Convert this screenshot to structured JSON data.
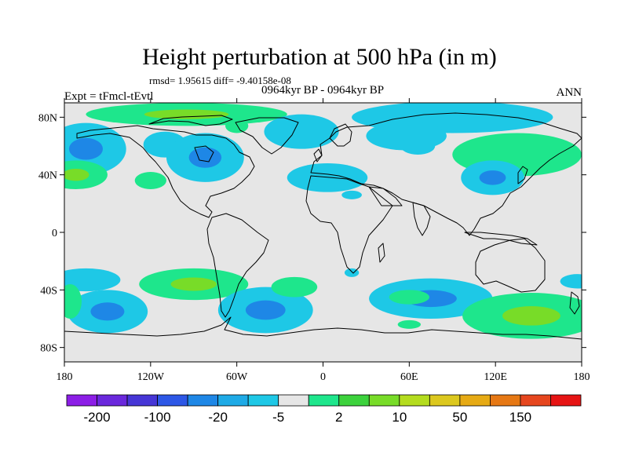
{
  "chart_data": {
    "type": "heatmap",
    "title": "Height perturbation at 500 hPa (in m)",
    "stats": "rmsd= 1.95615 diff= -9.40158e-08",
    "period": "0964kyr BP - 0964kyr BP",
    "experiment": "Expt = tFmcl-tEvtl",
    "season": "ANN",
    "x_ticks": [
      "180",
      "120W",
      "60W",
      "0",
      "60E",
      "120E",
      "180"
    ],
    "x_tick_values": [
      -180,
      -120,
      -60,
      0,
      60,
      120,
      180
    ],
    "y_ticks": [
      "80N",
      "40N",
      "0",
      "40S",
      "80S"
    ],
    "y_tick_values": [
      80,
      40,
      0,
      -40,
      -80
    ],
    "xlim": [
      -180,
      180
    ],
    "ylim": [
      -90,
      90
    ],
    "colorbar": {
      "labels": [
        "-200",
        "-100",
        "-20",
        "-5",
        "2",
        "10",
        "50",
        "150"
      ],
      "colors": [
        "#8c1ee6",
        "#6a28dc",
        "#4636d6",
        "#2d57e6",
        "#1e87e6",
        "#1eaae6",
        "#1ec8e6",
        "#e6e6e6",
        "#1ee68c",
        "#3cd23c",
        "#78dc28",
        "#b4dc1e",
        "#dcc81e",
        "#e6aa14",
        "#e67814",
        "#e6461e",
        "#e61414"
      ]
    },
    "anomalies": [
      {
        "lon": -95,
        "lat": 82,
        "rx": 70,
        "ry": 8,
        "level": "10",
        "core": "50"
      },
      {
        "lon": -60,
        "lat": 74,
        "rx": 8,
        "ry": 5,
        "level": "10"
      },
      {
        "lon": -15,
        "lat": 70,
        "rx": 26,
        "ry": 12,
        "level": "-5"
      },
      {
        "lon": 90,
        "lat": 80,
        "rx": 70,
        "ry": 11,
        "level": "-5"
      },
      {
        "lon": 58,
        "lat": 67,
        "rx": 28,
        "ry": 10,
        "level": "-5"
      },
      {
        "lon": 66,
        "lat": 60,
        "rx": 12,
        "ry": 6,
        "level": "-5"
      },
      {
        "lon": -165,
        "lat": 58,
        "rx": 28,
        "ry": 18,
        "level": "-5",
        "core": "-20"
      },
      {
        "lon": -110,
        "lat": 61,
        "rx": 15,
        "ry": 9,
        "level": "-5"
      },
      {
        "lon": -82,
        "lat": 52,
        "rx": 27,
        "ry": 17,
        "level": "-5",
        "core": "-20"
      },
      {
        "lon": -172,
        "lat": 40,
        "rx": 22,
        "ry": 10,
        "level": "10",
        "core": "50"
      },
      {
        "lon": -120,
        "lat": 36,
        "rx": 11,
        "ry": 6,
        "level": "10"
      },
      {
        "lon": 3,
        "lat": 38,
        "rx": 28,
        "ry": 10,
        "level": "-5"
      },
      {
        "lon": 20,
        "lat": 26,
        "rx": 7,
        "ry": 3,
        "level": "-5"
      },
      {
        "lon": 135,
        "lat": 54,
        "rx": 45,
        "ry": 15,
        "level": "10"
      },
      {
        "lon": 118,
        "lat": 38,
        "rx": 22,
        "ry": 12,
        "level": "-5",
        "core": "-20"
      },
      {
        "lon": 20,
        "lat": -28,
        "rx": 5,
        "ry": 3,
        "level": "-5"
      },
      {
        "lon": -165,
        "lat": -33,
        "rx": 24,
        "ry": 8,
        "level": "-5"
      },
      {
        "lon": -90,
        "lat": -36,
        "rx": 38,
        "ry": 11,
        "level": "10",
        "core": "50"
      },
      {
        "lon": -150,
        "lat": -55,
        "rx": 28,
        "ry": 15,
        "level": "-5",
        "core": "-20"
      },
      {
        "lon": -176,
        "lat": -48,
        "rx": 8,
        "ry": 12,
        "level": "10"
      },
      {
        "lon": -40,
        "lat": -54,
        "rx": 33,
        "ry": 16,
        "level": "-5",
        "core": "-20"
      },
      {
        "lon": -20,
        "lat": -38,
        "rx": 16,
        "ry": 7,
        "level": "10"
      },
      {
        "lon": 75,
        "lat": -46,
        "rx": 43,
        "ry": 14,
        "level": "-5",
        "core": "-20"
      },
      {
        "lon": 60,
        "lat": -45,
        "rx": 14,
        "ry": 5,
        "level": "10"
      },
      {
        "lon": 145,
        "lat": -58,
        "rx": 48,
        "ry": 16,
        "level": "10",
        "core": "50"
      },
      {
        "lon": 177,
        "lat": -34,
        "rx": 12,
        "ry": 5,
        "level": "-5"
      },
      {
        "lon": 60,
        "lat": -64,
        "rx": 8,
        "ry": 3,
        "level": "10"
      }
    ]
  }
}
